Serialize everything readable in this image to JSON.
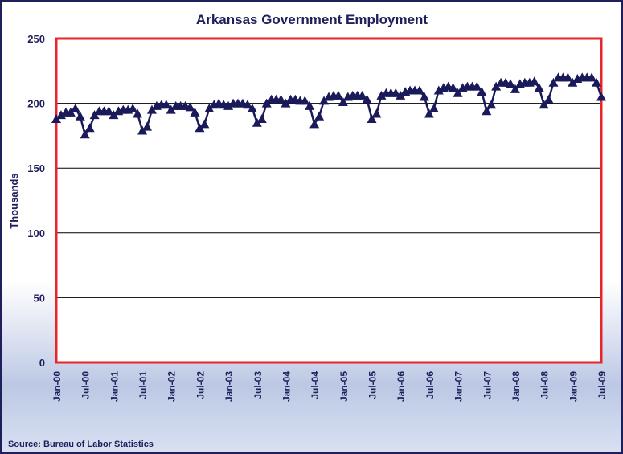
{
  "chart_data": {
    "type": "line",
    "title": "Arkansas Government Employment",
    "y_label": "Thousands",
    "source": "Source: Bureau of Labor Statistics",
    "categories": [
      "Jan-00",
      null,
      null,
      null,
      null,
      null,
      "Jul-00",
      null,
      null,
      null,
      null,
      null,
      "Jan-01",
      null,
      null,
      null,
      null,
      null,
      "Jul-01",
      null,
      null,
      null,
      null,
      null,
      "Jan-02",
      null,
      null,
      null,
      null,
      null,
      "Jul-02",
      null,
      null,
      null,
      null,
      null,
      "Jan-03",
      null,
      null,
      null,
      null,
      null,
      "Jul-03",
      null,
      null,
      null,
      null,
      null,
      "Jan-04",
      null,
      null,
      null,
      null,
      null,
      "Jul-04",
      null,
      null,
      null,
      null,
      null,
      "Jan-05",
      null,
      null,
      null,
      null,
      null,
      "Jul-05",
      null,
      null,
      null,
      null,
      null,
      "Jan-06",
      null,
      null,
      null,
      null,
      null,
      "Jul-06",
      null,
      null,
      null,
      null,
      null,
      "Jan-07",
      null,
      null,
      null,
      null,
      null,
      "Jul-07",
      null,
      null,
      null,
      null,
      null,
      "Jan-08",
      null,
      null,
      null,
      null,
      null,
      "Jul-08",
      null,
      null,
      null,
      null,
      null,
      "Jan-09",
      null,
      null,
      null,
      null,
      null,
      "Jul-09"
    ],
    "series": [
      {
        "name": "Government Employment",
        "color": "#1a1a5a",
        "values": [
          188,
          191,
          193,
          193,
          196,
          190,
          176,
          181,
          191,
          194,
          194,
          194,
          191,
          194,
          195,
          195,
          196,
          192,
          179,
          182,
          195,
          198,
          199,
          199,
          195,
          198,
          198,
          198,
          197,
          193,
          181,
          184,
          196,
          199,
          200,
          199,
          198,
          200,
          200,
          200,
          199,
          196,
          185,
          188,
          200,
          203,
          203,
          203,
          200,
          203,
          203,
          202,
          202,
          198,
          184,
          190,
          202,
          205,
          206,
          206,
          201,
          205,
          206,
          206,
          206,
          203,
          188,
          192,
          206,
          208,
          208,
          208,
          206,
          209,
          210,
          210,
          210,
          205,
          192,
          196,
          210,
          212,
          213,
          212,
          208,
          212,
          213,
          213,
          213,
          209,
          194,
          199,
          213,
          216,
          216,
          215,
          211,
          215,
          216,
          216,
          217,
          212,
          199,
          203,
          216,
          220,
          220,
          220,
          216,
          219,
          220,
          220,
          220,
          216,
          205
        ]
      }
    ],
    "ylim": [
      0,
      250
    ],
    "yticks": [
      0,
      50,
      100,
      150,
      200,
      250
    ],
    "grid": true
  }
}
